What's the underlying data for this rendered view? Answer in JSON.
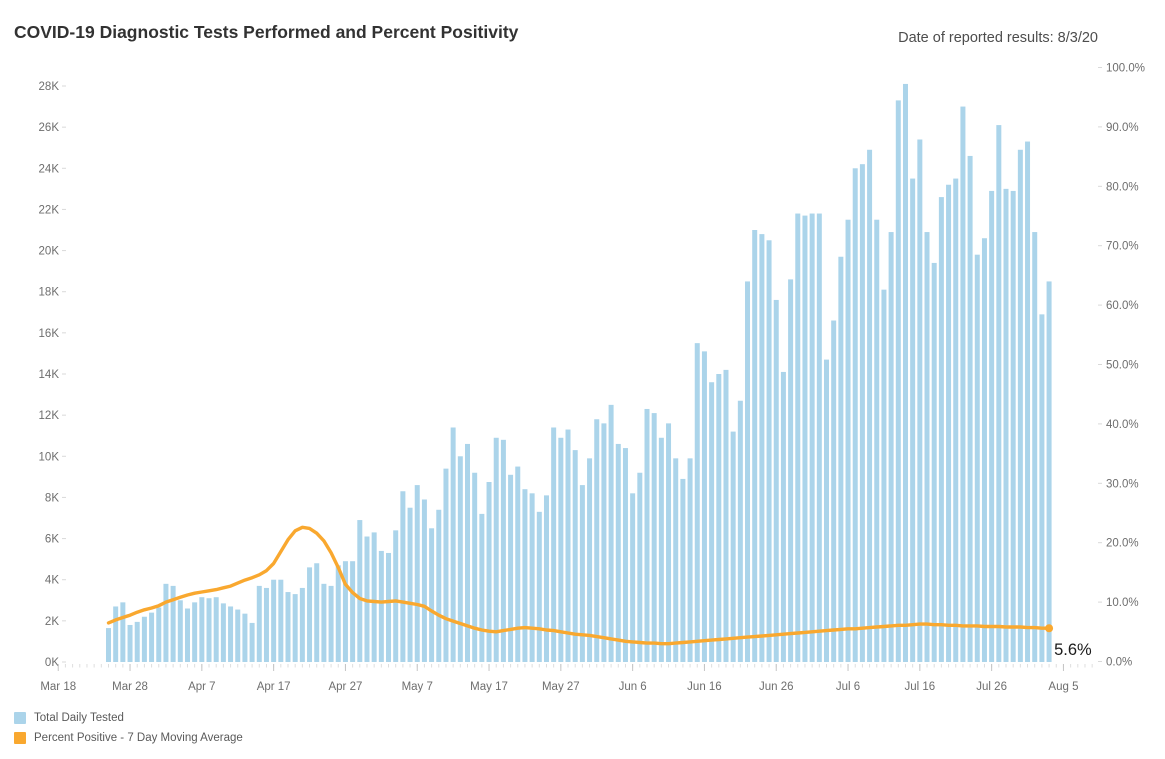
{
  "header": {
    "title": "COVID-19 Diagnostic Tests Performed and Percent Positivity",
    "date_note": "Date of reported results: 8/3/20"
  },
  "colors": {
    "bar": "#ABD4EA",
    "line": "#F9A82F",
    "axis_text": "#6e6e6e",
    "annotation_text": "#1b1b1b"
  },
  "legend": {
    "items": [
      {
        "label": "Total Daily Tested",
        "color": "#ABD4EA"
      },
      {
        "label": "Percent Positive - 7 Day Moving Average",
        "color": "#F9A82F"
      }
    ]
  },
  "annotation": {
    "final_percent_label": "5.6%"
  },
  "chart_data": {
    "type": "bar",
    "subtype": "dual-axis bar + line",
    "title": "COVID-19 Diagnostic Tests Performed and Percent Positivity",
    "xlabel": "",
    "ylabel_left": "Total Daily Tested",
    "ylabel_right": "Percent Positive - 7 Day Moving Average",
    "grid": false,
    "legend_position": "bottom-left",
    "left_axis": {
      "tick_labels": [
        "0K",
        "2K",
        "4K",
        "6K",
        "8K",
        "10K",
        "12K",
        "14K",
        "16K",
        "18K",
        "20K",
        "22K",
        "24K",
        "26K",
        "28K"
      ],
      "tick_values_thousands": [
        0,
        2,
        4,
        6,
        8,
        10,
        12,
        14,
        16,
        18,
        20,
        22,
        24,
        26,
        28
      ],
      "range_thousands": [
        0,
        28
      ]
    },
    "right_axis": {
      "tick_labels": [
        "0.0%",
        "10.0%",
        "20.0%",
        "30.0%",
        "40.0%",
        "50.0%",
        "60.0%",
        "70.0%",
        "80.0%",
        "90.0%",
        "100.0%"
      ],
      "tick_values_percent": [
        0,
        10,
        20,
        30,
        40,
        50,
        60,
        70,
        80,
        90,
        100
      ],
      "range_percent": [
        0,
        100
      ]
    },
    "x_ticks": {
      "labels": [
        "Mar 18",
        "Mar 28",
        "Apr 7",
        "Apr 17",
        "Apr 27",
        "May 7",
        "May 17",
        "May 27",
        "Jun 6",
        "Jun 16",
        "Jun 26",
        "Jul 6",
        "Jul 16",
        "Jul 26",
        "Aug 5"
      ],
      "day_offsets_from_first_bar": [
        -7,
        3,
        13,
        23,
        33,
        43,
        53,
        63,
        73,
        83,
        93,
        103,
        113,
        123,
        133
      ]
    },
    "series": [
      {
        "name": "Total Daily Tested",
        "mark": "bar",
        "axis": "left",
        "unit": "thousands of tests",
        "values_thousands": [
          1.65,
          2.7,
          2.9,
          1.8,
          1.95,
          2.2,
          2.4,
          2.65,
          3.8,
          3.7,
          3.0,
          2.6,
          2.9,
          3.15,
          3.1,
          3.15,
          2.85,
          2.7,
          2.55,
          2.35,
          1.9,
          3.7,
          3.6,
          4.0,
          4.0,
          3.4,
          3.3,
          3.6,
          4.6,
          4.8,
          3.8,
          3.7,
          4.7,
          4.9,
          4.9,
          6.9,
          6.1,
          6.3,
          5.4,
          5.3,
          6.4,
          8.3,
          7.5,
          8.6,
          7.9,
          6.5,
          7.4,
          9.4,
          11.4,
          10.0,
          10.6,
          9.2,
          7.2,
          8.75,
          10.9,
          10.8,
          9.1,
          9.5,
          8.4,
          8.2,
          7.3,
          8.1,
          11.4,
          10.9,
          11.3,
          10.3,
          8.6,
          9.9,
          11.8,
          11.6,
          12.5,
          10.6,
          10.4,
          8.2,
          9.2,
          12.3,
          12.1,
          10.9,
          11.6,
          9.9,
          8.9,
          9.9,
          15.5,
          15.1,
          13.6,
          14.0,
          14.2,
          11.2,
          12.7,
          18.5,
          21.0,
          20.8,
          20.5,
          17.6,
          14.1,
          18.6,
          21.8,
          21.7,
          21.8,
          21.8,
          14.7,
          16.6,
          19.7,
          21.5,
          24.0,
          24.2,
          24.9,
          21.5,
          18.1,
          20.9,
          27.3,
          28.1,
          23.5,
          25.4,
          20.9,
          19.4,
          22.6,
          23.2,
          23.5,
          27.0,
          24.6,
          19.8,
          20.6,
          22.9,
          26.1,
          23.0,
          22.9,
          24.9,
          25.3,
          20.9,
          16.9,
          18.5
        ]
      },
      {
        "name": "Percent Positive - 7 Day Moving Average",
        "mark": "line",
        "axis": "right",
        "unit": "percent",
        "end_label": "5.6%",
        "values_percent": [
          6.5,
          7.0,
          7.4,
          7.8,
          8.3,
          8.7,
          9.0,
          9.4,
          10.0,
          10.4,
          10.8,
          11.2,
          11.5,
          11.7,
          11.9,
          12.1,
          12.4,
          12.7,
          13.2,
          13.7,
          14.1,
          14.6,
          15.3,
          16.5,
          18.5,
          20.5,
          22.0,
          22.6,
          22.4,
          21.6,
          20.3,
          18.3,
          15.8,
          13.0,
          11.6,
          10.6,
          10.2,
          10.1,
          10.0,
          10.1,
          10.2,
          10.0,
          9.8,
          9.6,
          9.3,
          8.5,
          7.8,
          7.2,
          6.8,
          6.4,
          6.0,
          5.6,
          5.3,
          5.1,
          5.0,
          5.2,
          5.4,
          5.6,
          5.7,
          5.6,
          5.5,
          5.3,
          5.2,
          5.0,
          4.8,
          4.6,
          4.5,
          4.4,
          4.2,
          4.0,
          3.8,
          3.6,
          3.4,
          3.3,
          3.2,
          3.1,
          3.1,
          3.0,
          3.0,
          3.1,
          3.2,
          3.3,
          3.4,
          3.5,
          3.6,
          3.7,
          3.8,
          3.9,
          4.0,
          4.1,
          4.2,
          4.3,
          4.4,
          4.5,
          4.6,
          4.7,
          4.8,
          4.9,
          5.0,
          5.1,
          5.2,
          5.3,
          5.4,
          5.5,
          5.5,
          5.6,
          5.7,
          5.8,
          5.9,
          6.0,
          6.1,
          6.1,
          6.2,
          6.3,
          6.3,
          6.2,
          6.2,
          6.1,
          6.1,
          6.0,
          6.0,
          6.0,
          5.9,
          5.9,
          5.9,
          5.8,
          5.8,
          5.8,
          5.7,
          5.7,
          5.6,
          5.6
        ]
      }
    ]
  }
}
